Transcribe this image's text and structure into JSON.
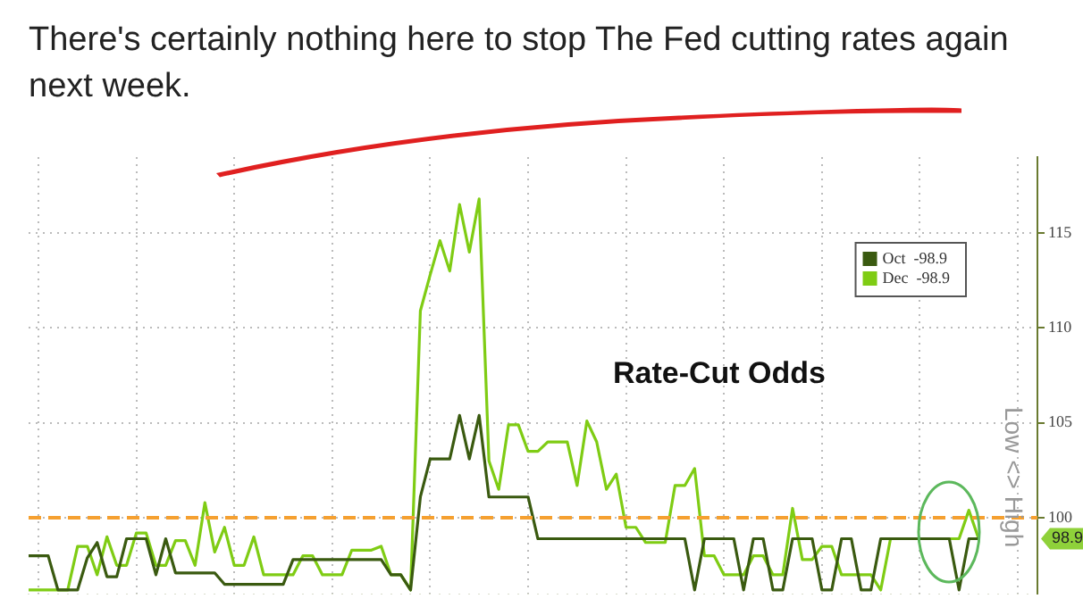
{
  "chart_data": {
    "type": "line",
    "title": "There's certainly nothing here to stop The Fed cutting rates again next week.",
    "ylabel": "Low <> High",
    "annotations": [
      "Rate-Cut Odds",
      "98.9"
    ],
    "categories": [
      null,
      null,
      null,
      null,
      null,
      null,
      null,
      null,
      null,
      null,
      null,
      null,
      null,
      null,
      null,
      null,
      null,
      null,
      null,
      null,
      null,
      null,
      null,
      null,
      null,
      null,
      null,
      null,
      null,
      null,
      null,
      null,
      null,
      null,
      null,
      null,
      null,
      null,
      null,
      null,
      null,
      null,
      null,
      null,
      null,
      null,
      null,
      null,
      null,
      null,
      null,
      null,
      null,
      null,
      null,
      null,
      null,
      null,
      null,
      null,
      null,
      null,
      null,
      null,
      null,
      null,
      null,
      null,
      null,
      null,
      null,
      null,
      null,
      null,
      null,
      null,
      null,
      null,
      null,
      null,
      null,
      null,
      null,
      null,
      null,
      null,
      null,
      null,
      null,
      null,
      null,
      null,
      null,
      null,
      null,
      null,
      null,
      null,
      null,
      null,
      null,
      null,
      null,
      null
    ],
    "series": [
      {
        "name": "Oct  -98.9",
        "color": "#3a5a10",
        "values": [
          98.0,
          98.0,
          98.0,
          96.2,
          96.2,
          96.2,
          97.9,
          98.7,
          96.9,
          96.9,
          98.9,
          98.9,
          98.9,
          97.0,
          98.9,
          97.1,
          97.1,
          97.1,
          97.1,
          97.1,
          96.5,
          96.5,
          96.5,
          96.5,
          96.5,
          96.5,
          96.5,
          97.8,
          97.8,
          97.8,
          97.8,
          97.8,
          97.8,
          97.8,
          97.8,
          97.8,
          97.8,
          97.0,
          97.0,
          96.2,
          101.1,
          103.1,
          103.1,
          103.1,
          105.4,
          103.1,
          105.4,
          101.1,
          101.1,
          101.1,
          101.1,
          101.1,
          98.9,
          98.9,
          98.9,
          98.9,
          98.9,
          98.9,
          98.9,
          98.9,
          98.9,
          98.9,
          98.9,
          98.9,
          98.9,
          98.9,
          98.9,
          98.9,
          96.2,
          98.9,
          98.9,
          98.9,
          98.9,
          96.2,
          98.9,
          98.9,
          96.2,
          96.2,
          98.9,
          98.9,
          98.9,
          96.2,
          96.2,
          98.9,
          98.9,
          96.2,
          96.2,
          98.9,
          98.9,
          98.9,
          98.9,
          98.9,
          98.9,
          98.9,
          98.9,
          96.2,
          98.9,
          98.9,
          null,
          null,
          null,
          null,
          null,
          null
        ]
      },
      {
        "name": "Dec  -98.9",
        "color": "#7fcc14",
        "values": [
          96.2,
          96.2,
          96.2,
          96.2,
          96.2,
          98.5,
          98.5,
          97.0,
          99.0,
          97.5,
          97.5,
          99.2,
          99.2,
          97.5,
          97.5,
          98.8,
          98.8,
          97.5,
          100.8,
          98.2,
          99.5,
          97.5,
          97.5,
          99.0,
          97.0,
          97.0,
          97.0,
          97.0,
          98.0,
          98.0,
          97.0,
          97.0,
          97.0,
          98.3,
          98.3,
          98.3,
          98.5,
          97.0,
          97.0,
          96.2,
          110.9,
          112.8,
          114.6,
          113.0,
          116.5,
          114.0,
          116.8,
          103.0,
          101.5,
          104.9,
          104.9,
          103.5,
          103.5,
          104.0,
          104.0,
          104.0,
          101.7,
          105.1,
          104.0,
          101.5,
          102.3,
          99.5,
          99.5,
          98.7,
          98.7,
          98.7,
          101.7,
          101.7,
          102.6,
          98.0,
          98.0,
          97.0,
          97.0,
          97.0,
          98.0,
          98.0,
          97.0,
          97.0,
          100.5,
          97.8,
          97.8,
          98.5,
          98.5,
          97.0,
          97.0,
          97.0,
          97.0,
          96.2,
          98.9,
          98.9,
          98.9,
          98.9,
          98.9,
          98.9,
          98.9,
          98.9,
          100.4,
          98.9,
          null,
          null,
          null,
          null,
          null,
          null
        ]
      }
    ],
    "ylim": [
      96,
      119
    ],
    "yticks": [
      100,
      105,
      110,
      115
    ],
    "ref_lines": [
      {
        "axis": "y",
        "value": 100,
        "color": "#f5a030",
        "line_style": "dashed"
      }
    ],
    "grid": true,
    "legend": "top right",
    "tick_labels": "y"
  }
}
